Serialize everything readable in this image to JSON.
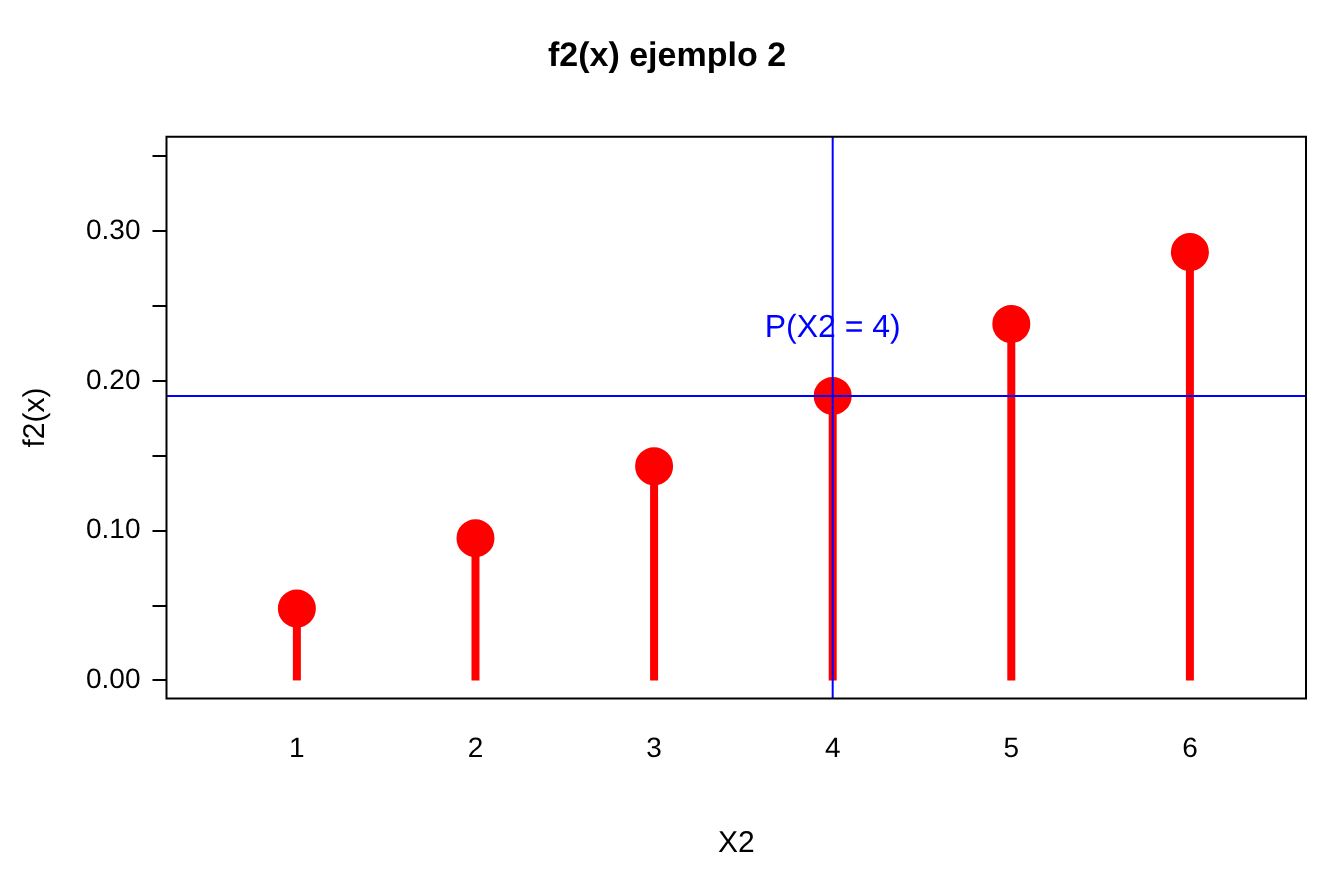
{
  "chart_data": {
    "type": "lollipop",
    "title": "f2(x) ejemplo 2",
    "xlabel": "X2",
    "ylabel": "f2(x)",
    "x": [
      1,
      2,
      3,
      4,
      5,
      6
    ],
    "series": [
      {
        "color": "#ff0000",
        "values": [
          0.048,
          0.095,
          0.143,
          0.19,
          0.238,
          0.286
        ]
      }
    ],
    "xlim": [
      0.27,
      6.65
    ],
    "xticks": [
      1,
      2,
      3,
      4,
      5,
      6
    ],
    "ylim": [
      -0.012,
      0.363
    ],
    "yticks": [
      {
        "value": 0,
        "label": "0.00"
      },
      {
        "value": 0.05,
        "label": null
      },
      {
        "value": 0.1,
        "label": "0.10"
      },
      {
        "value": 0.15,
        "label": null
      },
      {
        "value": 0.2,
        "label": "0.20"
      },
      {
        "value": 0.25,
        "label": null
      },
      {
        "value": 0.3,
        "label": "0.30"
      },
      {
        "value": 0.35,
        "label": null
      }
    ],
    "ref_lines": [
      {
        "axis": "x",
        "value": 4,
        "color": "#0000ff"
      },
      {
        "axis": "y",
        "value": 0.19,
        "color": "#0000ff"
      }
    ],
    "annotations": [
      {
        "text": "P(X2 = 4)",
        "x": 4,
        "y": 0.235
      }
    ],
    "marker": "circle",
    "grid": false,
    "legend": false
  }
}
